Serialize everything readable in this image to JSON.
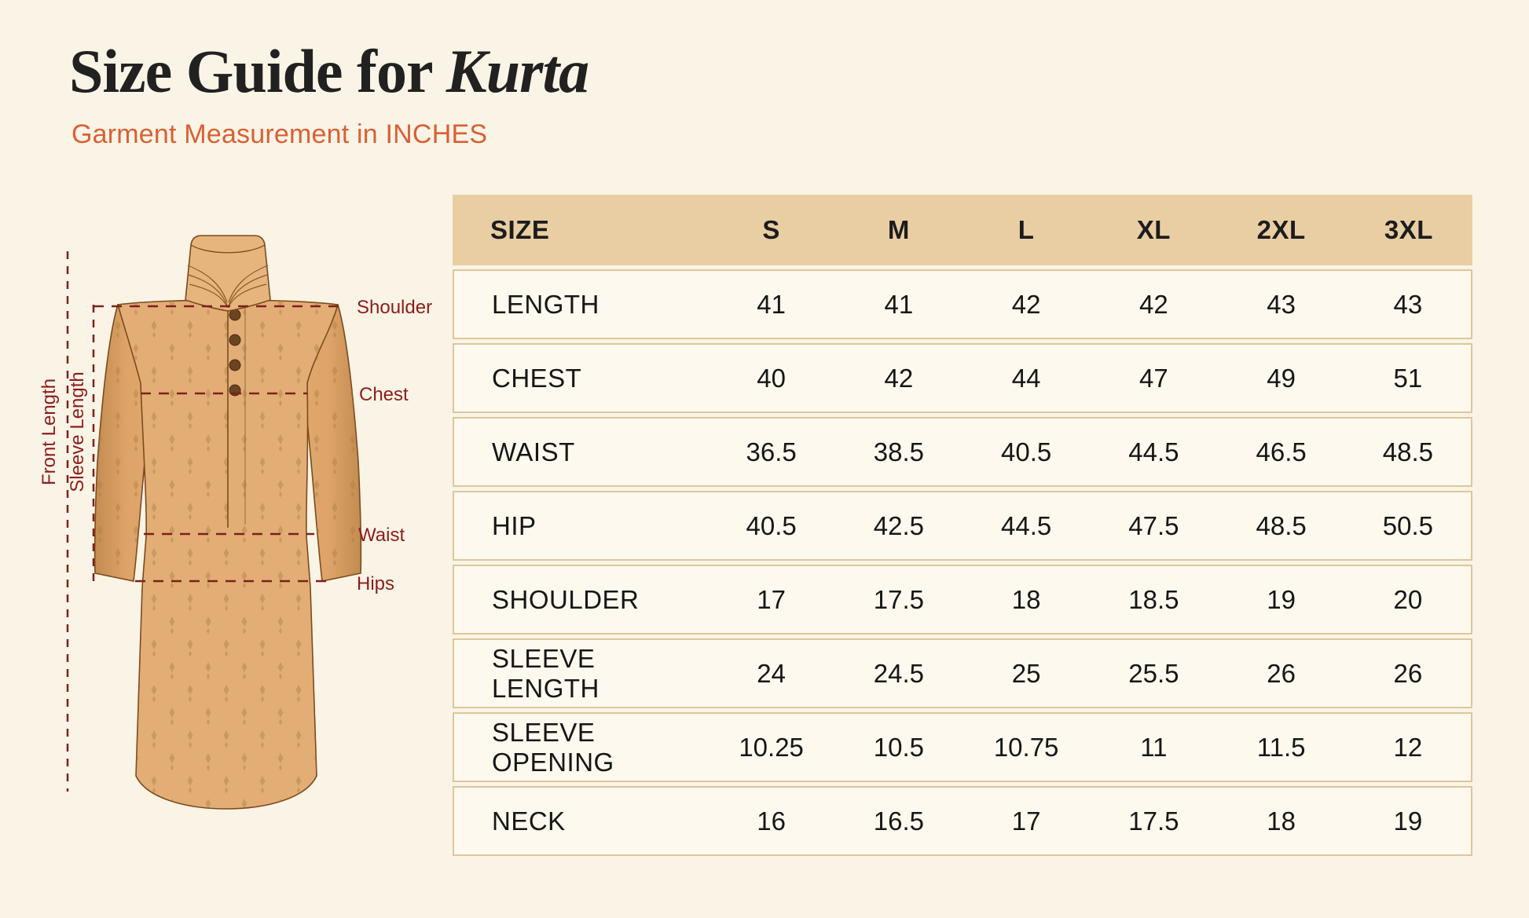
{
  "header": {
    "title_regular": "Size Guide for ",
    "title_italic": "Kurta",
    "subtitle": "Garment Measurement in INCHES"
  },
  "diagram": {
    "vertical_labels": {
      "front_length": "Front Length",
      "sleeve_length": "Sleeve Length"
    },
    "point_labels": {
      "shoulder": "Shoulder",
      "chest": "Chest",
      "waist": "Waist",
      "hips": "Hips"
    },
    "icon_names": [
      "kurta-garment-illustration",
      "measurement-dashed-line"
    ]
  },
  "table": {
    "size_header": "SIZE",
    "columns": [
      "S",
      "M",
      "L",
      "XL",
      "2XL",
      "3XL"
    ],
    "rows": [
      {
        "label": "LENGTH",
        "values": [
          "41",
          "41",
          "42",
          "42",
          "43",
          "43"
        ]
      },
      {
        "label": "CHEST",
        "values": [
          "40",
          "42",
          "44",
          "47",
          "49",
          "51"
        ]
      },
      {
        "label": "WAIST",
        "values": [
          "36.5",
          "38.5",
          "40.5",
          "44.5",
          "46.5",
          "48.5"
        ]
      },
      {
        "label": "HIP",
        "values": [
          "40.5",
          "42.5",
          "44.5",
          "47.5",
          "48.5",
          "50.5"
        ]
      },
      {
        "label": "SHOULDER",
        "values": [
          "17",
          "17.5",
          "18",
          "18.5",
          "19",
          "20"
        ]
      },
      {
        "label": "SLEEVE LENGTH",
        "values": [
          "24",
          "24.5",
          "25",
          "25.5",
          "26",
          "26"
        ]
      },
      {
        "label": "SLEEVE OPENING",
        "values": [
          "10.25",
          "10.5",
          "10.75",
          "11",
          "11.5",
          "12"
        ]
      },
      {
        "label": "NECK",
        "values": [
          "16",
          "16.5",
          "17",
          "17.5",
          "18",
          "19"
        ]
      }
    ]
  },
  "colors": {
    "page_background": "#faf4e6",
    "table_header_background": "#e9cea3",
    "table_row_background": "#fdf9ee",
    "table_border": "#ddc79c",
    "subtitle_orange": "#d96034",
    "diagram_maroon": "#8e1c1c",
    "garment_body": "#e3ae76",
    "garment_sleeve_dark": "#c9945a",
    "garment_outline": "#7d4a1c"
  }
}
